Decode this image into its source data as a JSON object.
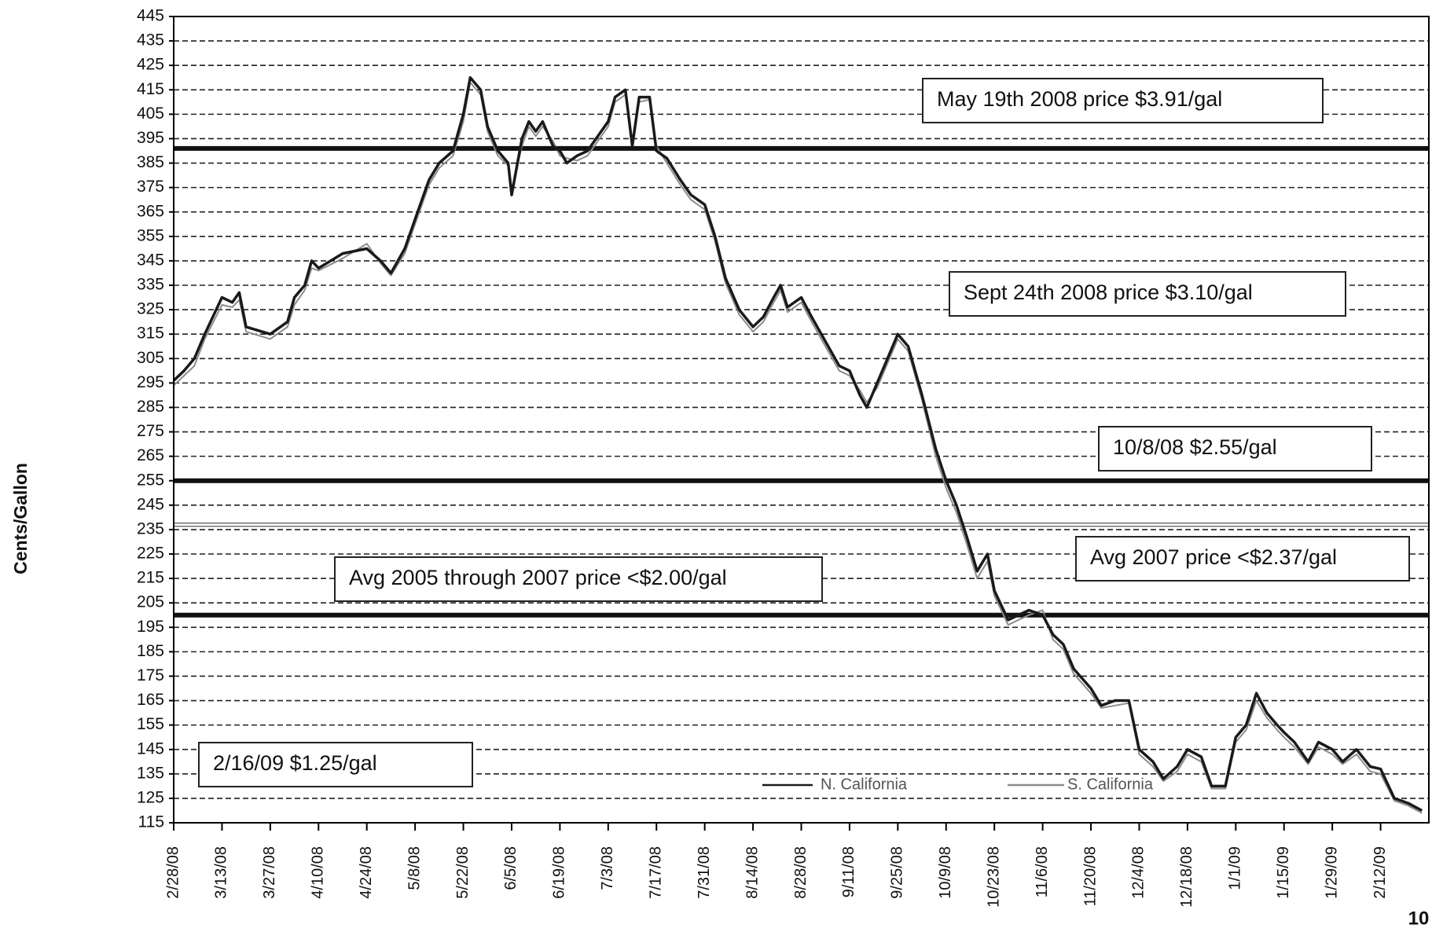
{
  "chart_data": {
    "type": "line",
    "y_label": "Cents/Gallon",
    "page_number": "10",
    "ylim": [
      115,
      445
    ],
    "yticks": [
      115,
      125,
      135,
      145,
      155,
      165,
      175,
      185,
      195,
      205,
      215,
      225,
      235,
      245,
      255,
      265,
      275,
      285,
      295,
      305,
      315,
      325,
      335,
      345,
      355,
      365,
      375,
      385,
      395,
      405,
      415,
      425,
      435,
      445
    ],
    "grid": true,
    "xlim": [
      "2/28/08",
      "2/26/09"
    ],
    "xticks": [
      "2/28/08",
      "3/13/08",
      "3/27/08",
      "4/10/08",
      "4/24/08",
      "5/8/08",
      "5/22/08",
      "6/5/08",
      "6/19/08",
      "7/3/08",
      "7/17/08",
      "7/31/08",
      "8/14/08",
      "8/28/08",
      "9/11/08",
      "9/25/08",
      "10/9/08",
      "10/23/08",
      "11/6/08",
      "11/20/08",
      "12/4/08",
      "12/18/08",
      "1/1/09",
      "1/15/09",
      "1/29/09",
      "2/12/09"
    ],
    "x": [
      "2/28/08",
      "3/2/08",
      "3/5/08",
      "3/8/08",
      "3/13/08",
      "3/16/08",
      "3/18/08",
      "3/20/08",
      "3/27/08",
      "4/1/08",
      "4/3/08",
      "4/6/08",
      "4/8/08",
      "4/10/08",
      "4/17/08",
      "4/24/08",
      "4/28/08",
      "5/1/08",
      "5/5/08",
      "5/8/08",
      "5/12/08",
      "5/15/08",
      "5/19/08",
      "5/22/08",
      "5/24/08",
      "5/27/08",
      "5/29/08",
      "6/1/08",
      "6/4/08",
      "6/5/08",
      "6/8/08",
      "6/10/08",
      "6/12/08",
      "6/14/08",
      "6/17/08",
      "6/19/08",
      "6/21/08",
      "6/24/08",
      "6/27/08",
      "7/1/08",
      "7/3/08",
      "7/5/08",
      "7/8/08",
      "7/10/08",
      "7/12/08",
      "7/15/08",
      "7/17/08",
      "7/20/08",
      "7/24/08",
      "7/27/08",
      "7/31/08",
      "8/3/08",
      "8/6/08",
      "8/10/08",
      "8/14/08",
      "8/17/08",
      "8/20/08",
      "8/22/08",
      "8/24/08",
      "8/28/08",
      "8/31/08",
      "9/4/08",
      "9/8/08",
      "9/11/08",
      "9/14/08",
      "9/16/08",
      "9/19/08",
      "9/22/08",
      "9/25/08",
      "9/28/08",
      "10/2/08",
      "10/6/08",
      "10/9/08",
      "10/12/08",
      "10/15/08",
      "10/18/08",
      "10/21/08",
      "10/23/08",
      "10/27/08",
      "10/30/08",
      "11/2/08",
      "11/6/08",
      "11/9/08",
      "11/12/08",
      "11/15/08",
      "11/20/08",
      "11/23/08",
      "11/27/08",
      "12/1/08",
      "12/4/08",
      "12/8/08",
      "12/11/08",
      "12/15/08",
      "12/18/08",
      "12/22/08",
      "12/25/08",
      "12/29/08",
      "1/1/09",
      "1/4/09",
      "1/7/09",
      "1/10/09",
      "1/13/09",
      "1/15/09",
      "1/18/09",
      "1/22/09",
      "1/25/09",
      "1/29/09",
      "2/1/09",
      "2/5/09",
      "2/9/09",
      "2/12/09",
      "2/16/09",
      "2/20/09",
      "2/24/09"
    ],
    "series": [
      {
        "name": "N. California",
        "color": "#1a1a1a",
        "values": [
          296,
          300,
          305,
          315,
          330,
          328,
          332,
          318,
          315,
          320,
          330,
          335,
          345,
          342,
          348,
          350,
          345,
          340,
          350,
          362,
          378,
          385,
          390,
          405,
          420,
          415,
          400,
          390,
          385,
          372,
          395,
          402,
          398,
          402,
          392,
          390,
          385,
          388,
          390,
          398,
          402,
          412,
          415,
          392,
          412,
          412,
          390,
          387,
          378,
          372,
          368,
          355,
          338,
          325,
          318,
          322,
          330,
          335,
          326,
          330,
          322,
          312,
          302,
          300,
          290,
          285,
          295,
          305,
          315,
          310,
          290,
          268,
          255,
          245,
          232,
          218,
          225,
          210,
          198,
          200,
          202,
          200,
          192,
          188,
          178,
          170,
          163,
          165,
          165,
          145,
          140,
          133,
          138,
          145,
          142,
          130,
          130,
          150,
          155,
          168,
          160,
          155,
          152,
          148,
          140,
          148,
          145,
          140,
          145,
          138,
          137,
          125,
          123,
          120
        ]
      },
      {
        "name": "S. California",
        "color": "#8c8c8c",
        "values": [
          294,
          298,
          302,
          313,
          327,
          326,
          329,
          316,
          313,
          318,
          327,
          333,
          342,
          341,
          346,
          352,
          344,
          339,
          348,
          360,
          376,
          383,
          388,
          402,
          418,
          413,
          398,
          388,
          384,
          374,
          392,
          400,
          396,
          400,
          394,
          388,
          387,
          386,
          388,
          396,
          400,
          410,
          413,
          394,
          410,
          411,
          392,
          385,
          376,
          370,
          366,
          353,
          336,
          323,
          316,
          320,
          328,
          333,
          324,
          328,
          320,
          310,
          300,
          298,
          292,
          287,
          293,
          303,
          313,
          308,
          288,
          265,
          252,
          242,
          229,
          215,
          222,
          208,
          196,
          198,
          200,
          202,
          190,
          186,
          176,
          168,
          162,
          163,
          164,
          143,
          138,
          132,
          136,
          143,
          140,
          129,
          129,
          148,
          153,
          165,
          158,
          153,
          150,
          146,
          139,
          146,
          143,
          139,
          143,
          136,
          135,
          124,
          122,
          119
        ]
      }
    ],
    "reference_lines": [
      {
        "value": 391,
        "style": "thick"
      },
      {
        "value": 255,
        "style": "thick"
      },
      {
        "value": 237,
        "style": "thin"
      },
      {
        "value": 200,
        "style": "thick"
      }
    ],
    "annotations": [
      "May 19th 2008 price $3.91/gal",
      "Sept 24th 2008 price $3.10/gal",
      "10/8/08 $2.55/gal",
      "Avg 2007 price <$2.37/gal",
      "Avg 2005 through 2007 price <$2.00/gal",
      "2/16/09 $1.25/gal"
    ]
  }
}
